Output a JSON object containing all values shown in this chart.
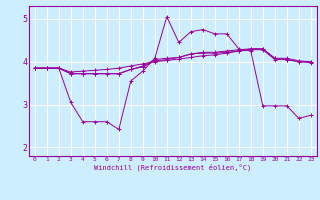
{
  "xlabel": "Windchill (Refroidissement éolien,°C)",
  "background_color": "#cceeff",
  "grid_color": "#ffffff",
  "line_color": "#990099",
  "xlim": [
    -0.5,
    23.5
  ],
  "ylim": [
    1.8,
    5.3
  ],
  "yticks": [
    2,
    3,
    4,
    5
  ],
  "xticks": [
    0,
    1,
    2,
    3,
    4,
    5,
    6,
    7,
    8,
    9,
    10,
    11,
    12,
    13,
    14,
    15,
    16,
    17,
    18,
    19,
    20,
    21,
    22,
    23
  ],
  "series": {
    "line1": {
      "x": [
        0,
        1,
        2,
        3,
        4,
        5,
        6,
        7,
        8,
        9,
        10,
        11,
        12,
        13,
        14,
        15,
        16,
        17,
        18,
        19,
        20,
        21,
        22,
        23
      ],
      "y": [
        3.85,
        3.85,
        3.85,
        3.05,
        2.6,
        2.6,
        2.6,
        2.42,
        3.55,
        3.78,
        4.08,
        5.05,
        4.45,
        4.7,
        4.75,
        4.65,
        4.65,
        4.3,
        4.25,
        2.97,
        2.97,
        2.97,
        2.68,
        2.75
      ]
    },
    "line2": {
      "x": [
        0,
        1,
        2,
        3,
        4,
        5,
        6,
        7,
        8,
        9,
        10,
        11,
        12,
        13,
        14,
        15,
        16,
        17,
        18,
        19,
        20,
        21,
        22,
        23
      ],
      "y": [
        3.85,
        3.85,
        3.85,
        3.72,
        3.72,
        3.72,
        3.72,
        3.72,
        3.82,
        3.88,
        4.02,
        4.05,
        4.1,
        4.18,
        4.2,
        4.2,
        4.22,
        4.25,
        4.28,
        4.28,
        4.05,
        4.05,
        4.0,
        4.0
      ]
    },
    "line3": {
      "x": [
        0,
        1,
        2,
        3,
        4,
        5,
        6,
        7,
        8,
        9,
        10,
        11,
        12,
        13,
        14,
        15,
        16,
        17,
        18,
        19,
        20,
        21,
        22,
        23
      ],
      "y": [
        3.85,
        3.85,
        3.85,
        3.72,
        3.72,
        3.72,
        3.72,
        3.72,
        3.82,
        3.9,
        4.05,
        4.08,
        4.1,
        4.18,
        4.22,
        4.22,
        4.25,
        4.28,
        4.3,
        4.3,
        4.08,
        4.08,
        4.02,
        4.0
      ]
    },
    "line4": {
      "x": [
        0,
        1,
        2,
        3,
        4,
        5,
        6,
        7,
        8,
        9,
        10,
        11,
        12,
        13,
        14,
        15,
        16,
        17,
        18,
        19,
        20,
        21,
        22,
        23
      ],
      "y": [
        3.85,
        3.85,
        3.85,
        3.76,
        3.78,
        3.8,
        3.82,
        3.85,
        3.9,
        3.95,
        4.0,
        4.03,
        4.06,
        4.1,
        4.14,
        4.16,
        4.2,
        4.25,
        4.3,
        4.3,
        4.08,
        4.05,
        4.0,
        3.98
      ]
    }
  }
}
